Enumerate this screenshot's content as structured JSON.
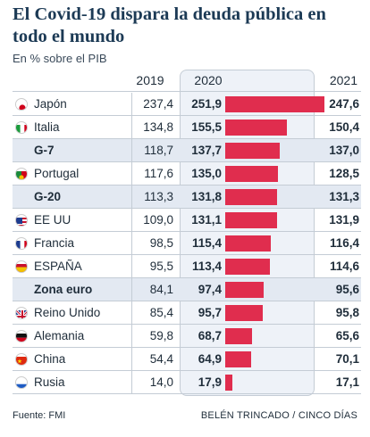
{
  "header": {
    "title": "El Covid-19 dispara la deuda pública en todo el mundo",
    "subtitle": "En % sobre el PIB"
  },
  "chart_data": {
    "type": "table",
    "title": "El Covid-19 dispara la deuda pública en todo el mundo",
    "subtitle": "En % sobre el PIB",
    "columns": [
      "2019",
      "2020",
      "2021"
    ],
    "bar_column": "2020",
    "bar_max": 251.9,
    "bar_color": "#e02d4e",
    "highlight_color": "#e3e9f2",
    "rows": [
      {
        "name": "Japón",
        "flag": "japan-flag-icon",
        "v2019": "237,4",
        "v2020": "251,9",
        "v2021": "247,6",
        "value2020": 251.9,
        "group": false
      },
      {
        "name": "Italia",
        "flag": "italy-flag-icon",
        "v2019": "134,8",
        "v2020": "155,5",
        "v2021": "150,4",
        "value2020": 155.5,
        "group": false
      },
      {
        "name": "G-7",
        "flag": "",
        "v2019": "118,7",
        "v2020": "137,7",
        "v2021": "137,0",
        "value2020": 137.7,
        "group": true
      },
      {
        "name": "Portugal",
        "flag": "portugal-flag-icon",
        "v2019": "117,6",
        "v2020": "135,0",
        "v2021": "128,5",
        "value2020": 135.0,
        "group": false
      },
      {
        "name": "G-20",
        "flag": "",
        "v2019": "113,3",
        "v2020": "131,8",
        "v2021": "131,3",
        "value2020": 131.8,
        "group": true
      },
      {
        "name": "EE UU",
        "flag": "usa-flag-icon",
        "v2019": "109,0",
        "v2020": "131,1",
        "v2021": "131,9",
        "value2020": 131.1,
        "group": false
      },
      {
        "name": "Francia",
        "flag": "france-flag-icon",
        "v2019": "98,5",
        "v2020": "115,4",
        "v2021": "116,4",
        "value2020": 115.4,
        "group": false
      },
      {
        "name": "ESPAÑA",
        "flag": "spain-flag-icon",
        "v2019": "95,5",
        "v2020": "113,4",
        "v2021": "114,6",
        "value2020": 113.4,
        "group": false
      },
      {
        "name": "Zona euro",
        "flag": "",
        "v2019": "84,1",
        "v2020": "97,4",
        "v2021": "95,6",
        "value2020": 97.4,
        "group": true
      },
      {
        "name": "Reino Unido",
        "flag": "uk-flag-icon",
        "v2019": "85,4",
        "v2020": "95,7",
        "v2021": "95,8",
        "value2020": 95.7,
        "group": false
      },
      {
        "name": "Alemania",
        "flag": "germany-flag-icon",
        "v2019": "59,8",
        "v2020": "68,7",
        "v2021": "65,6",
        "value2020": 68.7,
        "group": false
      },
      {
        "name": "China",
        "flag": "china-flag-icon",
        "v2019": "54,4",
        "v2020": "64,9",
        "v2021": "70,1",
        "value2020": 64.9,
        "group": false
      },
      {
        "name": "Rusia",
        "flag": "russia-flag-icon",
        "v2019": "14,0",
        "v2020": "17,9",
        "v2021": "17,1",
        "value2020": 17.9,
        "group": false
      }
    ]
  },
  "footer": {
    "source": "Fuente: FMI",
    "credit": "BELÉN TRINCADO / CINCO DÍAS"
  }
}
